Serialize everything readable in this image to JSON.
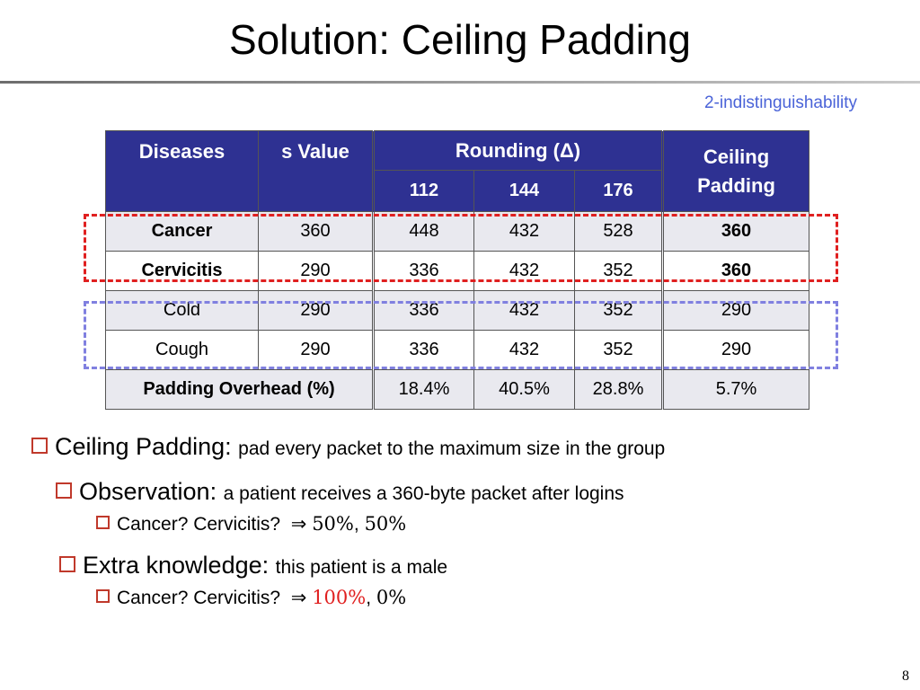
{
  "slide": {
    "title": "Solution: Ceiling Padding",
    "subtitle": "2-indistinguishability",
    "page_number": "8"
  },
  "table": {
    "headers": {
      "diseases": "Diseases",
      "s_value": "s Value",
      "rounding": "Rounding (Δ)",
      "ceiling_padding": "Ceiling Padding",
      "rounding_sub": [
        "112",
        "144",
        "176"
      ]
    },
    "rows": [
      {
        "disease": "Cancer",
        "s": "360",
        "r112": "448",
        "r144": "432",
        "r176": "528",
        "ceiling": "360"
      },
      {
        "disease": "Cervicitis",
        "s": "290",
        "r112": "336",
        "r144": "432",
        "r176": "352",
        "ceiling": "360"
      },
      {
        "disease": "Cold",
        "s": "290",
        "r112": "336",
        "r144": "432",
        "r176": "352",
        "ceiling": "290"
      },
      {
        "disease": "Cough",
        "s": "290",
        "r112": "336",
        "r144": "432",
        "r176": "352",
        "ceiling": "290"
      }
    ],
    "overhead": {
      "label": "Padding Overhead (%)",
      "r112": "18.4%",
      "r144": "40.5%",
      "r176": "28.8%",
      "ceiling": "5.7%"
    }
  },
  "bullets": {
    "b1_head": "Ceiling Padding:",
    "b1_text": "pad every packet to the maximum size in the group",
    "b2_head": "Observation:",
    "b2_text": "a patient receives a 360-byte packet after logins",
    "b2_sub_text": "Cancer? Cervicitis?",
    "b2_arrow": "⇒",
    "b2_val1": "50%",
    "b2_sep": ",",
    "b2_val2": "50%",
    "b3_head": "Extra knowledge:",
    "b3_text": "this patient is a male",
    "b3_sub_text": "Cancer? Cervicitis?",
    "b3_arrow": "⇒",
    "b3_val1": "100%",
    "b3_sep": ",",
    "b3_val2": "0%"
  },
  "colors": {
    "header_bg": "#2e3192",
    "accent_red": "#e02020",
    "accent_blue": "#8080e0",
    "subtitle": "#4a63d8"
  }
}
